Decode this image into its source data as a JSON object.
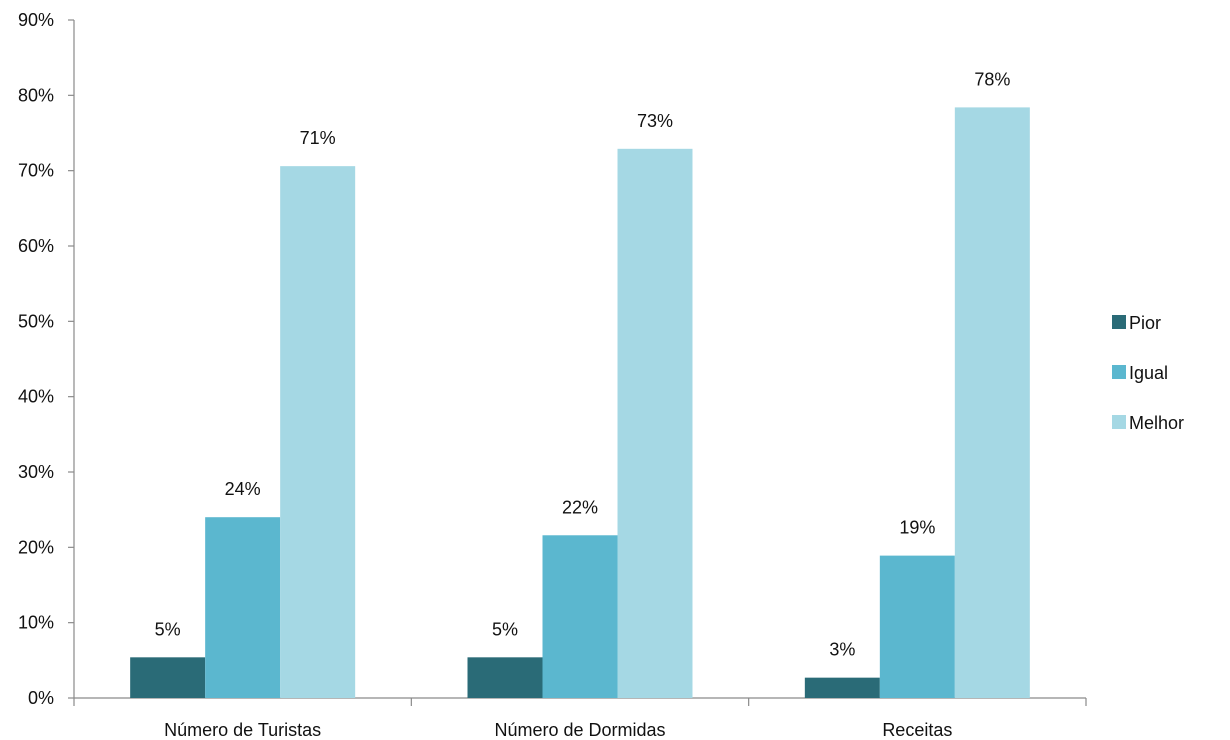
{
  "chart_data": {
    "type": "bar",
    "title": "",
    "xlabel": "",
    "ylabel": "",
    "categories": [
      "Número de Turistas",
      "Número de Dormidas",
      "Receitas"
    ],
    "series": [
      {
        "name": "Pior",
        "values": [
          5.4,
          5.4,
          2.7
        ],
        "labels": [
          "5%",
          "5%",
          "3%"
        ],
        "color": "#2a6b77"
      },
      {
        "name": "Igual",
        "values": [
          24.0,
          21.6,
          18.9
        ],
        "labels": [
          "24%",
          "22%",
          "19%"
        ],
        "color": "#5bb7cf"
      },
      {
        "name": "Melhor",
        "values": [
          70.6,
          72.9,
          78.4
        ],
        "labels": [
          "71%",
          "73%",
          "78%"
        ],
        "color": "#a5d8e4"
      }
    ],
    "ylim": [
      0,
      90
    ],
    "yticks": [
      "0%",
      "10%",
      "20%",
      "30%",
      "40%",
      "50%",
      "60%",
      "70%",
      "80%",
      "90%"
    ],
    "grid": false,
    "legend_position": "right"
  }
}
